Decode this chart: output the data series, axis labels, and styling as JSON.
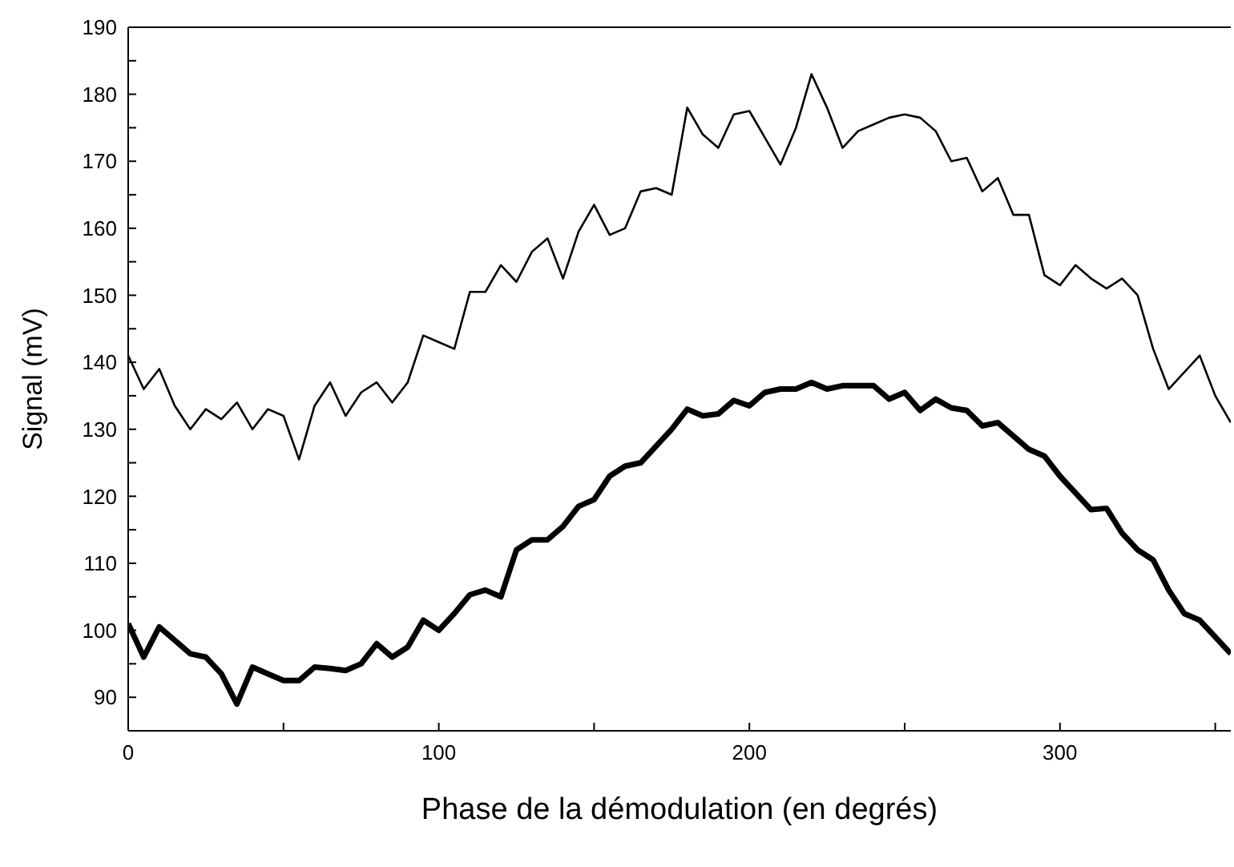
{
  "chart_data": {
    "type": "line",
    "xlabel": "Phase de la démodulation (en degrés)",
    "ylabel": "Signal (mV)",
    "x": [
      0,
      5,
      10,
      15,
      20,
      25,
      30,
      35,
      40,
      45,
      50,
      55,
      60,
      65,
      70,
      75,
      80,
      85,
      90,
      95,
      100,
      105,
      110,
      115,
      120,
      125,
      130,
      135,
      140,
      145,
      150,
      155,
      160,
      165,
      170,
      175,
      180,
      185,
      190,
      195,
      200,
      205,
      210,
      215,
      220,
      225,
      230,
      235,
      240,
      245,
      250,
      255,
      260,
      265,
      270,
      275,
      280,
      285,
      290,
      295,
      300,
      305,
      310,
      315,
      320,
      325,
      330,
      335,
      340,
      345,
      350,
      355
    ],
    "series": [
      {
        "color": "#000000",
        "values": [
          141,
          136,
          139,
          133.5,
          130,
          133,
          131.5,
          134,
          130,
          133,
          132,
          125.5,
          133.5,
          137,
          132,
          135.5,
          137,
          134,
          137,
          144,
          143,
          142,
          150.5,
          150.5,
          154.5,
          152,
          156.5,
          158.5,
          152.5,
          159.5,
          163.5,
          159,
          160,
          165.5,
          166,
          165,
          178,
          174,
          172,
          177,
          177.5,
          173.5,
          169.5,
          175,
          183,
          178,
          172,
          174.5,
          175.5,
          176.5,
          177,
          176.5,
          174.5,
          170,
          170.5,
          165.5,
          167.5,
          162,
          162,
          153,
          151.5,
          154.5,
          152.5,
          151,
          152.5,
          150,
          142,
          136,
          138.5,
          141,
          135,
          131
        ]
      },
      {
        "color": "#000000",
        "values": [
          101,
          96,
          100.5,
          98.5,
          96.5,
          96,
          93.5,
          89,
          94.5,
          93.5,
          92.5,
          92.5,
          94.5,
          94.3,
          94,
          95,
          98,
          96,
          97.5,
          101.5,
          100,
          102.5,
          105.3,
          106,
          105,
          112,
          113.5,
          113.5,
          115.5,
          118.5,
          119.5,
          123,
          124.5,
          125,
          127.5,
          130,
          133,
          132,
          132.3,
          134.3,
          133.5,
          135.5,
          136,
          136,
          137,
          136,
          136.5,
          136.5,
          136.5,
          134.5,
          135.5,
          132.8,
          134.5,
          133.2,
          132.8,
          130.5,
          131,
          129,
          127,
          126,
          123,
          120.5,
          118,
          118.2,
          114.5,
          112,
          110.5,
          106,
          102.5,
          101.5,
          99,
          96.5
        ]
      }
    ],
    "xlim": [
      0,
      355
    ],
    "xticks": [
      0,
      {
        "value": 50,
        "label": null
      },
      100,
      {
        "value": 150,
        "label": null
      },
      200,
      {
        "value": 250,
        "label": null
      },
      300,
      {
        "value": 350,
        "label": null
      }
    ],
    "ylim": [
      85,
      190
    ],
    "yticks": [
      {
        "value": 85,
        "label": null
      },
      90,
      {
        "value": 95,
        "label": null
      },
      100,
      {
        "value": 105,
        "label": null
      },
      110,
      {
        "value": 115,
        "label": null
      },
      120,
      {
        "value": 125,
        "label": null
      },
      130,
      {
        "value": 135,
        "label": null
      },
      140,
      {
        "value": 145,
        "label": null
      },
      150,
      {
        "value": 155,
        "label": null
      },
      160,
      {
        "value": 165,
        "label": null
      },
      170,
      {
        "value": 175,
        "label": null
      },
      180,
      {
        "value": 185,
        "label": null
      },
      190
    ],
    "legend": false,
    "marker": "none",
    "line_style": "solid"
  }
}
